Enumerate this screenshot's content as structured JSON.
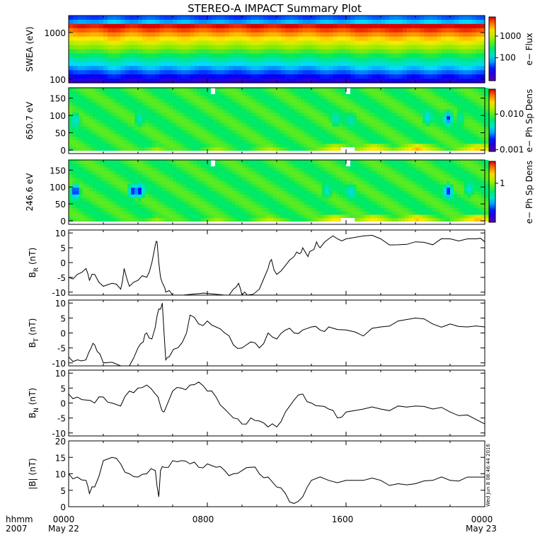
{
  "title": "STEREO-A IMPACT Summary Plot",
  "timestamp": "Wed Jun  8 08:46:44 2016",
  "x_axis": {
    "row1": [
      "hhmm",
      "0000",
      "0800",
      "1600",
      "0000"
    ],
    "row2": [
      "2007",
      "May 22",
      "May 23"
    ]
  },
  "chart_data": [
    {
      "type": "heatmap",
      "ylabel": "SWEA (eV)",
      "ylog": true,
      "yticks": [
        "1000",
        "100"
      ],
      "colorbar": {
        "label": "e− Flux",
        "ticks": [
          "1000",
          "100"
        ]
      },
      "band_hours": [
        {
          "x": 0.0,
          "h": 0.03
        },
        {
          "x": 1.0,
          "h": 0.05
        },
        {
          "x": 2.3,
          "h": 0.08
        },
        {
          "x": 3.5,
          "h": 0.06
        },
        {
          "x": 5.0,
          "h": 0.07
        },
        {
          "x": 6.7,
          "h": 0.06
        },
        {
          "x": 9.0,
          "h": 0.05
        },
        {
          "x": 11.0,
          "h": 0.06
        },
        {
          "x": 14.0,
          "h": 0.06
        },
        {
          "x": 18.0,
          "h": 0.09
        },
        {
          "x": 21.5,
          "h": 0.08
        },
        {
          "x": 24.0,
          "h": 0.08
        }
      ]
    },
    {
      "type": "heatmap",
      "ylabel": "650.7 eV",
      "ylim": [
        0,
        180
      ],
      "yticks": [
        "150",
        "100",
        "50",
        "0"
      ],
      "colorbar": {
        "label": "e− Ph Sp Dens",
        "ticks": [
          "0.010",
          "0.001"
        ]
      },
      "blobs": [
        {
          "t": 0.3,
          "pa": 90,
          "level": 0.34
        },
        {
          "t": 4.0,
          "pa": 90,
          "level": 0.4
        },
        {
          "t": 15.3,
          "pa": 90,
          "level": 0.4
        },
        {
          "t": 16.2,
          "pa": 90,
          "level": 0.42
        },
        {
          "t": 20.6,
          "pa": 95,
          "level": 0.36
        },
        {
          "t": 21.8,
          "pa": 95,
          "level": 0.2
        },
        {
          "t": 22.5,
          "pa": 95,
          "level": 0.4
        }
      ],
      "strahl": [
        {
          "t": 5.0,
          "level": 0.7
        },
        {
          "t": 8.5,
          "level": 0.72
        },
        {
          "t": 11.5,
          "level": 0.74
        },
        {
          "t": 15.3,
          "level": 0.82
        },
        {
          "t": 17.5,
          "level": 0.84
        },
        {
          "t": 20.0,
          "level": 0.88
        },
        {
          "t": 23.5,
          "level": 0.86
        }
      ]
    },
    {
      "type": "heatmap",
      "ylabel": "246.6 eV",
      "ylim": [
        0,
        180
      ],
      "yticks": [
        "150",
        "100",
        "50",
        "0"
      ],
      "colorbar": {
        "label": "e− Ph Sp Dens",
        "ticks": [
          "1"
        ]
      },
      "blobs": [
        {
          "t": 0.3,
          "pa": 90,
          "level": 0.08
        },
        {
          "t": 3.6,
          "pa": 90,
          "level": 0.14
        },
        {
          "t": 4.0,
          "pa": 90,
          "level": 0.12
        },
        {
          "t": 14.8,
          "pa": 90,
          "level": 0.36
        },
        {
          "t": 16.2,
          "pa": 90,
          "level": 0.36
        },
        {
          "t": 21.8,
          "pa": 90,
          "level": 0.14
        },
        {
          "t": 23.0,
          "pa": 95,
          "level": 0.36
        }
      ],
      "strahl": [
        {
          "t": 5.0,
          "level": 0.7
        },
        {
          "t": 8.5,
          "level": 0.72
        },
        {
          "t": 11.5,
          "level": 0.76
        },
        {
          "t": 15.3,
          "level": 0.84
        },
        {
          "t": 17.5,
          "level": 0.84
        },
        {
          "t": 20.0,
          "level": 0.86
        },
        {
          "t": 23.5,
          "level": 0.88
        }
      ]
    },
    {
      "type": "line",
      "ylabel": "B",
      "ysub": "R",
      "yunit": " (nT)",
      "ylim": [
        -11,
        11
      ],
      "yticks": [
        10,
        5,
        0,
        -5,
        -10
      ],
      "x": [
        0.0,
        0.5,
        1.0,
        1.2,
        1.5,
        2.0,
        2.5,
        3.0,
        3.2,
        3.5,
        4.0,
        4.5,
        4.8,
        5.0,
        5.1,
        5.3,
        5.5,
        5.6,
        6.0,
        6.3,
        6.6,
        9.0,
        9.5,
        9.8,
        10.0,
        10.3,
        11.0,
        11.5,
        11.7,
        12.0,
        12.5,
        13.0,
        13.3,
        13.5,
        13.8,
        14.0,
        14.3,
        14.5,
        15.0,
        15.5,
        16.0,
        17.0,
        18.0,
        19.0,
        20.0,
        21.0,
        22.0,
        23.0,
        23.5,
        24.0
      ],
      "y": [
        -5,
        -4,
        -2,
        -6,
        -4,
        -8,
        -7,
        -9,
        -2,
        -8,
        -6,
        -5,
        0,
        6,
        7,
        -5,
        -8,
        -10,
        -11,
        -11,
        -11,
        -11,
        -9,
        -7,
        -11,
        -11,
        -9,
        -2,
        1,
        -4,
        -1,
        2,
        3,
        5,
        2,
        4,
        7,
        5,
        8,
        8,
        8,
        9,
        8,
        6,
        7,
        6,
        8,
        8,
        8,
        7
      ]
    },
    {
      "type": "line",
      "ylabel": "B",
      "ysub": "T",
      "yunit": " (nT)",
      "ylim": [
        -11,
        11
      ],
      "yticks": [
        10,
        5,
        0,
        -5,
        -10
      ],
      "x": [
        0.0,
        0.5,
        1.0,
        1.3,
        1.5,
        1.8,
        2.0,
        3.0,
        3.5,
        4.0,
        4.3,
        4.5,
        4.8,
        5.0,
        5.2,
        5.4,
        5.6,
        5.8,
        6.3,
        6.8,
        7.0,
        7.5,
        8.0,
        8.5,
        9.0,
        9.5,
        10.0,
        10.5,
        11.0,
        11.5,
        12.0,
        12.5,
        13.0,
        13.5,
        14.0,
        14.5,
        15.0,
        16.0,
        17.0,
        18.0,
        19.0,
        20.0,
        21.0,
        22.0,
        23.0,
        24.0
      ],
      "y": [
        -8,
        -9,
        -9,
        -5,
        -4,
        -7,
        -10,
        -11,
        -11,
        -5,
        -3,
        0,
        -2,
        2,
        8,
        10,
        -9,
        -8,
        -5,
        0,
        6,
        3,
        4,
        2,
        0,
        -4,
        -5,
        -3,
        -5,
        0,
        -2,
        1,
        0,
        1,
        2,
        1,
        2,
        1,
        -1,
        2,
        4,
        5,
        3,
        3,
        2,
        2
      ]
    },
    {
      "type": "line",
      "ylabel": "B",
      "ysub": "N",
      "yunit": " (nT)",
      "ylim": [
        -11,
        11
      ],
      "yticks": [
        10,
        5,
        0,
        -5,
        -10
      ],
      "x": [
        0.0,
        0.5,
        1.0,
        1.5,
        2.0,
        2.5,
        3.0,
        3.5,
        4.0,
        4.5,
        5.0,
        5.3,
        5.5,
        6.0,
        6.5,
        7.0,
        7.5,
        8.0,
        8.5,
        9.0,
        9.5,
        10.0,
        10.5,
        11.0,
        11.5,
        12.0,
        12.5,
        13.0,
        13.5,
        14.0,
        14.5,
        15.0,
        15.5,
        16.0,
        17.0,
        18.0,
        19.0,
        20.0,
        21.0,
        22.0,
        23.0,
        24.0
      ],
      "y": [
        3,
        2,
        1,
        0,
        2,
        0,
        -1,
        4,
        5,
        6,
        3,
        -1,
        -3,
        4,
        5,
        6,
        7,
        4,
        2,
        -2,
        -5,
        -7,
        -5,
        -6,
        -8,
        -8,
        -3,
        1,
        3,
        0,
        -1,
        -2,
        -5,
        -3,
        -2,
        -2,
        -1,
        -1,
        -2,
        -3,
        -4,
        -7
      ]
    },
    {
      "type": "line",
      "ylabel": "|B|",
      "yunit": " (nT)",
      "ylim": [
        0,
        20
      ],
      "yticks": [
        20,
        15,
        10,
        5,
        0
      ],
      "x": [
        0.0,
        0.5,
        1.0,
        1.2,
        1.5,
        2.0,
        2.5,
        3.0,
        3.5,
        4.0,
        4.5,
        5.0,
        5.2,
        5.3,
        5.5,
        6.0,
        6.5,
        7.0,
        7.5,
        8.0,
        8.5,
        9.0,
        9.5,
        10.0,
        10.5,
        11.0,
        11.5,
        12.0,
        12.5,
        13.0,
        13.5,
        14.0,
        15.0,
        16.0,
        17.0,
        18.0,
        19.0,
        20.0,
        21.0,
        22.0,
        23.0,
        24.0
      ],
      "y": [
        10,
        9,
        8,
        4,
        6,
        14,
        15,
        13,
        10,
        9,
        10,
        11,
        3,
        11,
        12,
        14,
        14,
        13,
        12,
        13,
        12,
        11,
        10,
        11,
        12,
        10,
        9,
        6,
        4,
        1,
        3,
        8,
        8,
        8,
        8,
        8,
        7,
        7,
        8,
        8,
        9,
        9
      ]
    }
  ]
}
